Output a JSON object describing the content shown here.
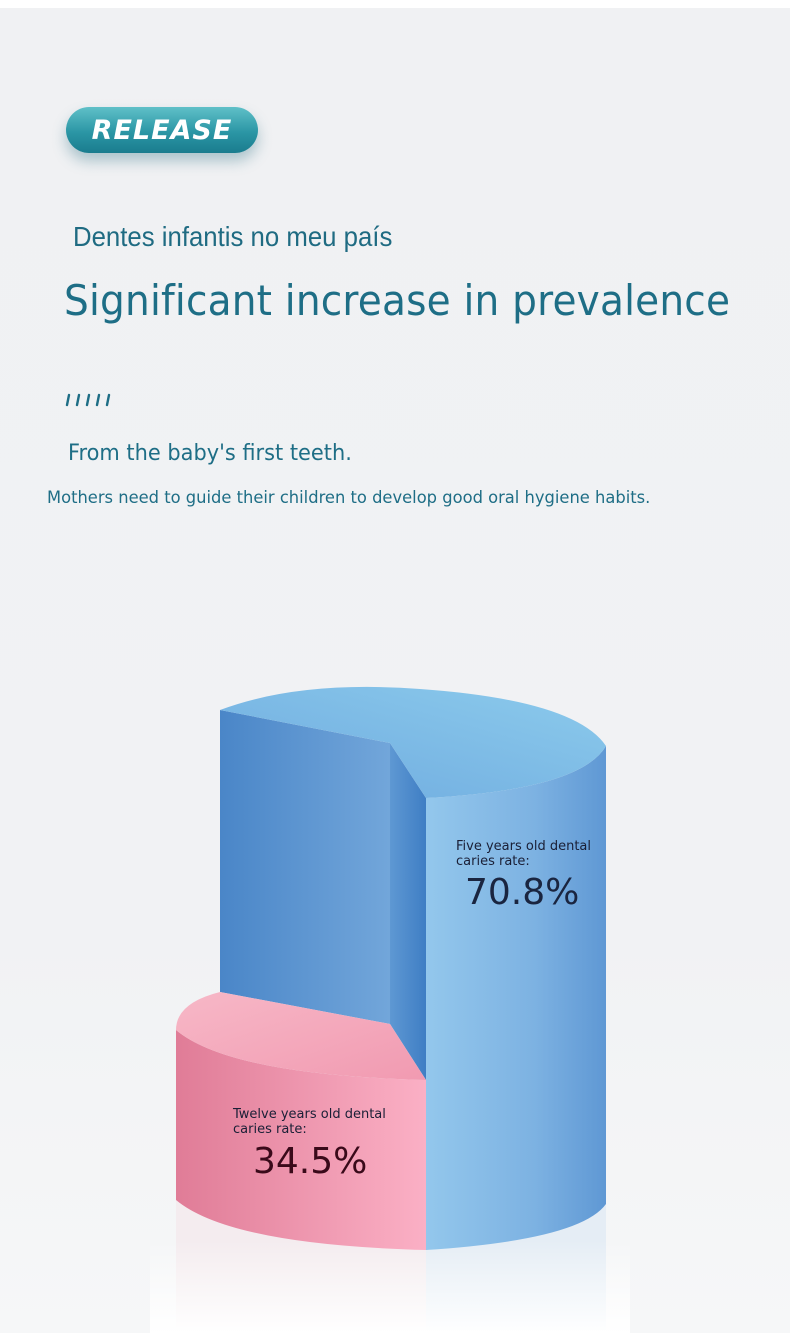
{
  "badge": {
    "label": "RELEASE"
  },
  "header": {
    "subtitle": "Dentes infantis no meu país",
    "title": "Significant increase in prevalence"
  },
  "intro": {
    "lead": "From the baby's first teeth.",
    "body": "Mothers need to guide their children to develop good oral hygiene habits."
  },
  "chart_data": {
    "type": "pie",
    "style": "3d-cylinder",
    "series": [
      {
        "label_line1": "Five years old dental",
        "label_line2": "caries rate:",
        "value": 70.8,
        "value_label": "70.8%",
        "color": "#6fa6dc"
      },
      {
        "label_line1": "Twelve years old dental",
        "label_line2": "caries rate:",
        "value": 34.5,
        "value_label": "34.5%",
        "color": "#f2a6b8"
      }
    ]
  },
  "colors": {
    "accent": "#1e6e86",
    "badge": "#2b96a5",
    "blue": "#6fa6dc",
    "pink": "#f2a6b8"
  }
}
